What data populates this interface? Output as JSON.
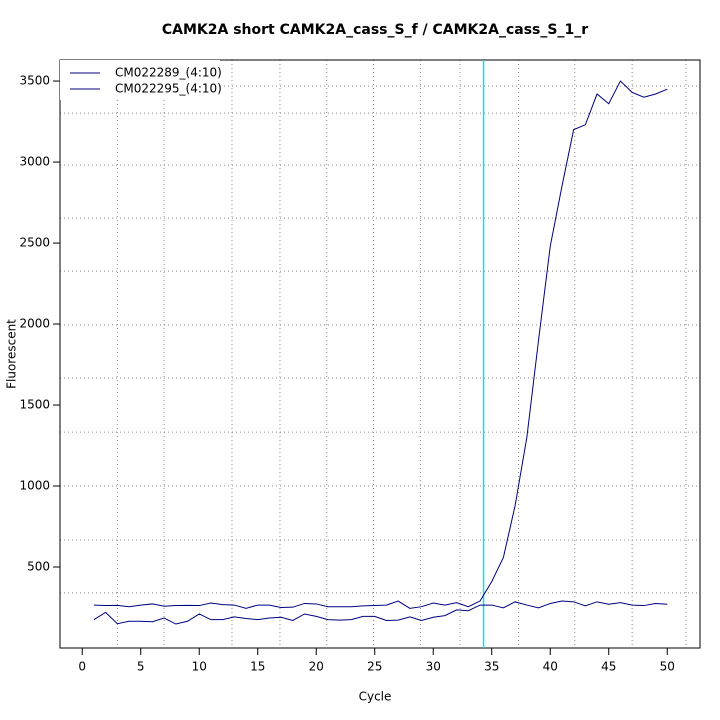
{
  "chart_data": {
    "type": "line",
    "title": "CAMK2A short CAMK2A_cass_S_f / CAMK2A_cass_S_1_r",
    "x_label": "Cycle",
    "y_label": "Fluorescent",
    "x": [
      1,
      2,
      3,
      4,
      5,
      6,
      7,
      8,
      9,
      10,
      11,
      12,
      13,
      14,
      15,
      16,
      17,
      18,
      19,
      20,
      21,
      22,
      23,
      24,
      25,
      26,
      27,
      28,
      29,
      30,
      31,
      32,
      33,
      34,
      35,
      36,
      37,
      38,
      39,
      40,
      41,
      42,
      43,
      44,
      45,
      46,
      47,
      48,
      49,
      50
    ],
    "series": [
      {
        "name": "CM022289_(4:10)",
        "color": "#000080",
        "values": [
          265,
          262,
          263,
          255,
          265,
          272,
          258,
          262,
          263,
          262,
          278,
          268,
          265,
          245,
          265,
          265,
          250,
          252,
          275,
          272,
          255,
          255,
          255,
          260,
          262,
          265,
          290,
          245,
          255,
          278,
          265,
          280,
          255,
          290,
          410,
          560,
          880,
          1300,
          1900,
          2480,
          2850,
          3200,
          3230,
          3420,
          3360,
          3500,
          3430,
          3400,
          3420,
          3450
        ]
      },
      {
        "name": "CM022295_(4:10)",
        "color": "#000080",
        "values": [
          175,
          220,
          150,
          165,
          165,
          162,
          185,
          148,
          165,
          210,
          175,
          175,
          192,
          182,
          175,
          185,
          190,
          170,
          210,
          195,
          175,
          172,
          175,
          195,
          195,
          170,
          172,
          192,
          170,
          190,
          200,
          235,
          230,
          265,
          265,
          248,
          285,
          265,
          248,
          275,
          290,
          285,
          260,
          285,
          270,
          280,
          265,
          262,
          275,
          270
        ]
      }
    ],
    "xlim": [
      -1.9,
      52.8
    ],
    "ylim": [
      0,
      3630
    ],
    "xticks": [
      0,
      5,
      10,
      15,
      20,
      25,
      30,
      35,
      40,
      45,
      50
    ],
    "yticks": [
      500,
      1000,
      1500,
      2000,
      2500,
      3000,
      3500
    ],
    "xgrid": [
      3,
      7,
      12.8,
      16.9,
      20.9,
      24.9,
      28.9,
      32.3,
      37.3,
      42.1,
      47,
      51.6
    ],
    "ygrid": [
      340,
      667,
      1000,
      1333,
      1667,
      1994,
      2327,
      2654,
      2981,
      3302,
      3469
    ],
    "vlines": [
      {
        "x": 34.3,
        "color": "#00e5ee"
      }
    ],
    "legend": "top-left"
  }
}
